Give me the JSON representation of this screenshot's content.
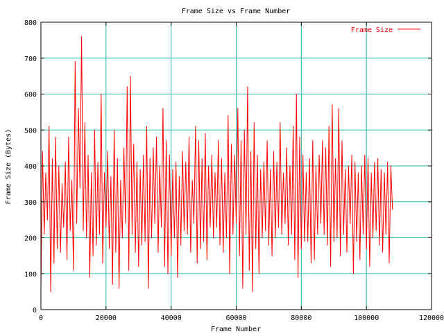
{
  "chart_data": {
    "type": "line",
    "title": "Frame Size vs Frame Number",
    "xlabel": "Frame Number",
    "ylabel": "Frame Size (Bytes)",
    "xlim": [
      0,
      120000
    ],
    "ylim": [
      0,
      800
    ],
    "x_ticks": [
      0,
      20000,
      40000,
      60000,
      80000,
      100000,
      120000
    ],
    "y_ticks": [
      0,
      100,
      200,
      300,
      400,
      500,
      600,
      700,
      800
    ],
    "grid": true,
    "legend_position": "top-right",
    "series": [
      {
        "name": "Frame Size",
        "color": "#ff0000",
        "x": [
          0,
          500,
          1000,
          1500,
          2000,
          2500,
          3000,
          3500,
          4000,
          4500,
          5000,
          5500,
          6000,
          6500,
          7000,
          7500,
          8000,
          8500,
          9000,
          9500,
          10000,
          10500,
          11000,
          11500,
          12000,
          12500,
          13000,
          13500,
          14000,
          14500,
          15000,
          15500,
          16000,
          16500,
          17000,
          17500,
          18000,
          18500,
          19000,
          19500,
          20000,
          20500,
          21000,
          21500,
          22000,
          22500,
          23000,
          23500,
          24000,
          24500,
          25000,
          25500,
          26000,
          26500,
          27000,
          27500,
          28000,
          28500,
          29000,
          29500,
          30000,
          30500,
          31000,
          31500,
          32000,
          32500,
          33000,
          33500,
          34000,
          34500,
          35000,
          35500,
          36000,
          36500,
          37000,
          37500,
          38000,
          38500,
          39000,
          39500,
          40000,
          40500,
          41000,
          41500,
          42000,
          42500,
          43000,
          43500,
          44000,
          44500,
          45000,
          45500,
          46000,
          46500,
          47000,
          47500,
          48000,
          48500,
          49000,
          49500,
          50000,
          50500,
          51000,
          51500,
          52000,
          52500,
          53000,
          53500,
          54000,
          54500,
          55000,
          55500,
          56000,
          56500,
          57000,
          57500,
          58000,
          58500,
          59000,
          59500,
          60000,
          60500,
          61000,
          61500,
          62000,
          62500,
          63000,
          63500,
          64000,
          64500,
          65000,
          65500,
          66000,
          66500,
          67000,
          67500,
          68000,
          68500,
          69000,
          69500,
          70000,
          70500,
          71000,
          71500,
          72000,
          72500,
          73000,
          73500,
          74000,
          74500,
          75000,
          75500,
          76000,
          76500,
          77000,
          77500,
          78000,
          78500,
          79000,
          79500,
          80000,
          80500,
          81000,
          81500,
          82000,
          82500,
          83000,
          83500,
          84000,
          84500,
          85000,
          85500,
          86000,
          86500,
          87000,
          87500,
          88000,
          88500,
          89000,
          89500,
          90000,
          90500,
          91000,
          91500,
          92000,
          92500,
          93000,
          93500,
          94000,
          94500,
          95000,
          95500,
          96000,
          96500,
          97000,
          97500,
          98000,
          98500,
          99000,
          99500,
          100000,
          100500,
          101000,
          101500,
          102000,
          102500,
          103000,
          103500,
          104000,
          104500,
          105000,
          105500,
          106000,
          106500,
          107000,
          107500,
          108000
        ],
        "y": [
          60,
          440,
          210,
          380,
          250,
          510,
          50,
          420,
          130,
          480,
          170,
          400,
          160,
          350,
          230,
          410,
          140,
          480,
          220,
          360,
          110,
          690,
          240,
          560,
          340,
          760,
          220,
          520,
          200,
          430,
          90,
          380,
          150,
          500,
          180,
          410,
          210,
          600,
          130,
          380,
          230,
          440,
          170,
          370,
          70,
          500,
          160,
          420,
          60,
          360,
          200,
          450,
          240,
          620,
          110,
          650,
          210,
          460,
          160,
          410,
          120,
          390,
          180,
          430,
          190,
          510,
          60,
          420,
          200,
          450,
          240,
          480,
          160,
          400,
          230,
          560,
          120,
          470,
          100,
          430,
          150,
          390,
          200,
          410,
          90,
          370,
          180,
          440,
          220,
          410,
          210,
          480,
          160,
          360,
          240,
          510,
          130,
          470,
          170,
          420,
          190,
          490,
          140,
          400,
          230,
          430,
          200,
          380,
          230,
          470,
          180,
          420,
          160,
          380,
          200,
          540,
          100,
          460,
          210,
          430,
          240,
          560,
          150,
          470,
          60,
          500,
          210,
          620,
          110,
          440,
          50,
          520,
          170,
          430,
          100,
          390,
          200,
          410,
          220,
          470,
          180,
          390,
          150,
          440,
          200,
          410,
          230,
          520,
          210,
          380,
          240,
          450,
          180,
          400,
          210,
          510,
          140,
          600,
          90,
          480,
          170,
          430,
          190,
          380,
          190,
          420,
          130,
          470,
          140,
          400,
          210,
          430,
          240,
          470,
          210,
          450,
          180,
          510,
          120,
          570,
          190,
          420,
          200,
          560,
          150,
          470,
          210,
          390,
          160,
          400,
          240,
          430,
          100,
          410,
          190,
          380,
          140,
          400,
          210,
          430,
          170,
          420,
          120,
          380,
          200,
          410,
          220,
          420,
          180,
          390,
          160,
          380,
          210,
          410,
          130,
          400,
          280
        ]
      }
    ]
  }
}
